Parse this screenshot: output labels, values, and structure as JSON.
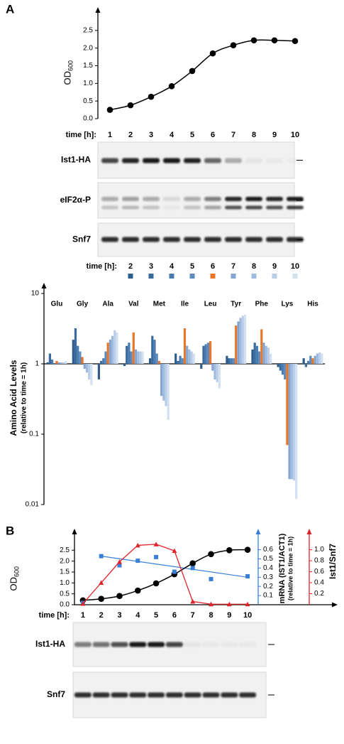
{
  "panel_labels": [
    "A",
    "B"
  ],
  "chart_data": [
    {
      "type": "line",
      "ylabel": "OD",
      "ylabel_sub": "600",
      "xlabel": "time [h]:",
      "x": [
        1,
        2,
        3,
        4,
        5,
        6,
        7,
        8,
        9,
        10
      ],
      "values": [
        0.25,
        0.38,
        0.62,
        0.92,
        1.35,
        1.85,
        2.08,
        2.22,
        2.22,
        2.2
      ],
      "color": "#000000",
      "xlim": [
        0.4,
        10.9
      ],
      "ylim": [
        0,
        2.9
      ],
      "yticks": [
        {
          "value": 0,
          "label": "0.0"
        },
        0.5,
        {
          "value": 1,
          "label": "1.0"
        },
        1.5,
        {
          "value": 2,
          "label": "2.0"
        },
        2.5
      ]
    },
    {
      "type": "bar",
      "log_scale": true,
      "ylabel": "Amino Acid Levels",
      "ylabel2": "(relative to time = 1h)",
      "legend_title": "time [h]:",
      "categories": [
        "Glu",
        "Gly",
        "Ala",
        "Val",
        "Met",
        "Ile",
        "Leu",
        "Tyr",
        "Phe",
        "Lys",
        "His"
      ],
      "series": [
        {
          "name": "2",
          "color": "#2f5c8a",
          "values": [
            1.05,
            2.2,
            0.6,
            0.93,
            1.2,
            1.4,
            0.85,
            1.3,
            1.6,
            0.9,
            1.2
          ]
        },
        {
          "name": "3",
          "color": "#3a6b9e",
          "values": [
            1.4,
            3.2,
            1.1,
            1.8,
            2.5,
            1.1,
            1.8,
            1.2,
            2.0,
            0.8,
            0.9
          ]
        },
        {
          "name": "4",
          "color": "#4a7bb0",
          "values": [
            1.15,
            1.8,
            1.2,
            2.0,
            2.2,
            1.3,
            1.9,
            1.2,
            1.8,
            0.7,
            1.1
          ]
        },
        {
          "name": "5",
          "color": "#5b8bbf",
          "values": [
            0.97,
            1.5,
            1.5,
            1.5,
            1.4,
            1.2,
            2.0,
            1.2,
            1.5,
            0.6,
            1.3
          ]
        },
        {
          "name": "6",
          "color": "#e8772a",
          "values": [
            1.1,
            1.25,
            2.0,
            2.8,
            1.1,
            3.2,
            2.1,
            3.5,
            3.1,
            0.07,
            1.2
          ]
        },
        {
          "name": "7",
          "color": "#86a6d2",
          "values": [
            1.05,
            0.85,
            2.2,
            1.6,
            0.35,
            1.8,
            0.8,
            4.0,
            2.0,
            0.023,
            1.3
          ]
        },
        {
          "name": "8",
          "color": "#a1bbdf",
          "values": [
            1.05,
            0.75,
            2.5,
            1.5,
            0.3,
            1.6,
            0.6,
            4.5,
            1.8,
            0.023,
            1.4
          ]
        },
        {
          "name": "9",
          "color": "#bacde9",
          "values": [
            1.05,
            0.6,
            3.0,
            1.5,
            0.25,
            1.5,
            0.55,
            4.8,
            1.7,
            0.022,
            1.45
          ]
        },
        {
          "name": "10",
          "color": "#d3e0f2",
          "values": [
            1.1,
            0.5,
            2.8,
            1.5,
            0.16,
            1.4,
            0.45,
            5.0,
            1.4,
            0.012,
            1.4
          ]
        }
      ],
      "ylim": [
        0.01,
        10
      ],
      "yticks": [
        10,
        1,
        0.1,
        0.01
      ]
    },
    {
      "type": "line",
      "xlabel": "time [h]:",
      "x": [
        1,
        2,
        3,
        4,
        5,
        6,
        7,
        8,
        9,
        10
      ],
      "ylabel": "OD",
      "ylabel_sub": "600",
      "y2label": "mRNA (IST1/ACT1)",
      "y2label2": "(relative to time = 1h)",
      "y3label": "Ist1/Snf7",
      "xlim": [
        0.5,
        10.5
      ],
      "ylim": [
        0,
        2.9
      ],
      "yticks": [
        {
          "value": 0,
          "label": "0.0"
        },
        0.5,
        {
          "value": 1,
          "label": "1.0"
        },
        1.5,
        {
          "value": 2,
          "label": "2.0"
        },
        2.5
      ],
      "y2lim": [
        0,
        0.69
      ],
      "y2ticks": [
        0.1,
        0.2,
        0.3,
        0.4,
        0.5,
        0.6
      ],
      "y3lim": [
        0,
        1.15
      ],
      "y3ticks": [
        0.2,
        0.4,
        0.6,
        0.8,
        {
          "value": 1,
          "label": "1.0"
        }
      ],
      "series": [
        {
          "color": "#000000",
          "axis": "y",
          "marker": "circle",
          "values": [
            0.2,
            0.27,
            0.4,
            0.65,
            0.98,
            1.4,
            1.9,
            2.32,
            2.5,
            2.52
          ]
        },
        {
          "color": "#3a7fd5",
          "axis": "y2",
          "marker": "square",
          "values": [
            0.02,
            0.53,
            0.43,
            0.48,
            0.52,
            0.36,
            0.4,
            0.28,
            null,
            0.31
          ]
        },
        {
          "color": "#e0242a",
          "axis": "y3",
          "marker": "triangle",
          "values": [
            0.02,
            0.4,
            0.78,
            1.08,
            1.1,
            0.98,
            0.06,
            0.01,
            0.01,
            0.01
          ]
        }
      ],
      "trendline": {
        "axis": "y2",
        "color": "#3a7fd5",
        "x": [
          2,
          10
        ],
        "values": [
          0.53,
          0.3
        ]
      }
    }
  ],
  "blots": {
    "A": [
      "Ist1-HA",
      "eIF2α-P",
      "Snf7"
    ],
    "B": [
      "Ist1-HA",
      "Snf7"
    ]
  }
}
